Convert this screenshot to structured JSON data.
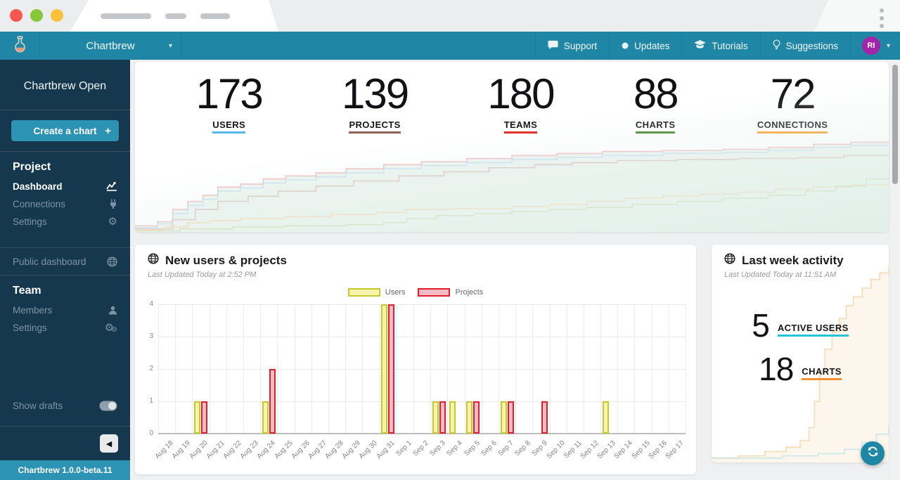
{
  "window": {
    "traffic_lights": [
      "#fa5650",
      "#86c73c",
      "#fcc03d"
    ]
  },
  "navbar": {
    "selector_label": "Chartbrew",
    "items": [
      {
        "label": "Support",
        "icon": "chat"
      },
      {
        "label": "Updates",
        "icon": "dot"
      },
      {
        "label": "Tutorials",
        "icon": "cap"
      },
      {
        "label": "Suggestions",
        "icon": "bulb"
      }
    ],
    "avatar": "RI"
  },
  "sidebar": {
    "workspace": "Chartbrew Open",
    "create_chart": "Create a chart",
    "project_heading": "Project",
    "project_items": [
      {
        "label": "Dashboard",
        "icon": "chart",
        "active": true
      },
      {
        "label": "Connections",
        "icon": "plug",
        "active": false
      },
      {
        "label": "Settings",
        "icon": "gear",
        "active": false
      }
    ],
    "public_dashboard": "Public dashboard",
    "team_heading": "Team",
    "team_items": [
      {
        "label": "Members",
        "icon": "user",
        "active": false
      },
      {
        "label": "Settings",
        "icon": "gears",
        "active": false
      }
    ],
    "show_drafts": "Show drafts",
    "version": "Chartbrew 1.0.0-beta.11"
  },
  "stats": {
    "items": [
      {
        "value": "173",
        "label": "USERS",
        "underline": "#56b9ec"
      },
      {
        "value": "139",
        "label": "PROJECTS",
        "underline": "#8f6358"
      },
      {
        "value": "180",
        "label": "TEAMS",
        "underline": "#e02b22"
      },
      {
        "value": "88",
        "label": "CHARTS",
        "underline": "#45872f"
      },
      {
        "value": "72",
        "label": "CONNECTIONS",
        "underline": "#f8a02e"
      }
    ]
  },
  "cards": {
    "new_users": {
      "title": "New users & projects",
      "updated": "Last Updated Today at 2:52 PM",
      "legend": [
        {
          "label": "Users",
          "fill": "#f6f3ae",
          "border": "#c6c92b"
        },
        {
          "label": "Projects",
          "fill": "#f3bcc4",
          "border": "#e2202d"
        }
      ]
    },
    "activity": {
      "title": "Last week activity",
      "updated": "Last Updated Today at 11:51 AM",
      "stats": [
        {
          "value": "5",
          "label": "ACTIVE USERS",
          "underline": "#27c4d8"
        },
        {
          "value": "18",
          "label": "CHARTS",
          "underline": "#f68f2e"
        }
      ]
    }
  },
  "chart_data": [
    {
      "name": "new-users-projects",
      "type": "bar",
      "title": "New users & projects",
      "categories": [
        "Aug 18",
        "Aug 19",
        "Aug 20",
        "Aug 21",
        "Aug 22",
        "Aug 23",
        "Aug 24",
        "Aug 25",
        "Aug 26",
        "Aug 27",
        "Aug 28",
        "Aug 29",
        "Aug 30",
        "Aug 31",
        "Sep 1",
        "Sep 2",
        "Sep 3",
        "Sep 4",
        "Sep 5",
        "Sep 6",
        "Sep 7",
        "Sep 8",
        "Sep 9",
        "Sep 10",
        "Sep 11",
        "Sep 12",
        "Sep 13",
        "Sep 14",
        "Sep 15",
        "Sep 16",
        "Sep 17"
      ],
      "series": [
        {
          "name": "Users",
          "fill": "#f6f3ae",
          "border": "#c6c92b",
          "values": [
            0,
            0,
            1,
            0,
            0,
            0,
            1,
            0,
            0,
            0,
            0,
            0,
            0,
            4,
            0,
            0,
            1,
            1,
            1,
            0,
            1,
            0,
            0,
            0,
            0,
            0,
            1,
            0,
            0,
            0,
            0
          ]
        },
        {
          "name": "Projects",
          "fill": "#f3bcc4",
          "border": "#e2202d",
          "values": [
            0,
            0,
            1,
            0,
            0,
            0,
            2,
            0,
            0,
            0,
            0,
            0,
            0,
            4,
            0,
            0,
            1,
            0,
            1,
            0,
            1,
            0,
            1,
            0,
            0,
            0,
            0,
            0,
            0,
            0,
            0
          ]
        }
      ],
      "ylim": [
        0,
        4
      ],
      "yticks": [
        0,
        1,
        2,
        3,
        4
      ],
      "grid": true,
      "legend_position": "top"
    },
    {
      "name": "overview-trends",
      "type": "line",
      "normalized": true,
      "area_fill": "#e4efe9",
      "series": [
        {
          "name": "Teams",
          "color": "#f2b2ba",
          "points": [
            [
              0,
              0.06
            ],
            [
              0.03,
              0.1
            ],
            [
              0.05,
              0.22
            ],
            [
              0.07,
              0.3
            ],
            [
              0.09,
              0.36
            ],
            [
              0.11,
              0.44
            ],
            [
              0.14,
              0.47
            ],
            [
              0.17,
              0.52
            ],
            [
              0.2,
              0.55
            ],
            [
              0.24,
              0.58
            ],
            [
              0.28,
              0.62
            ],
            [
              0.33,
              0.66
            ],
            [
              0.38,
              0.69
            ],
            [
              0.44,
              0.72
            ],
            [
              0.5,
              0.75
            ],
            [
              0.56,
              0.77
            ],
            [
              0.62,
              0.79
            ],
            [
              0.7,
              0.8
            ],
            [
              0.78,
              0.81
            ],
            [
              0.84,
              0.83
            ],
            [
              0.9,
              0.86
            ],
            [
              0.95,
              0.88
            ],
            [
              1,
              0.9
            ]
          ]
        },
        {
          "name": "Users",
          "color": "#c3dcf4",
          "points": [
            [
              0,
              0.04
            ],
            [
              0.03,
              0.08
            ],
            [
              0.05,
              0.18
            ],
            [
              0.07,
              0.26
            ],
            [
              0.09,
              0.32
            ],
            [
              0.11,
              0.4
            ],
            [
              0.14,
              0.43
            ],
            [
              0.17,
              0.48
            ],
            [
              0.2,
              0.51
            ],
            [
              0.24,
              0.54
            ],
            [
              0.28,
              0.58
            ],
            [
              0.33,
              0.62
            ],
            [
              0.38,
              0.65
            ],
            [
              0.44,
              0.68
            ],
            [
              0.5,
              0.71
            ],
            [
              0.56,
              0.73
            ],
            [
              0.62,
              0.75
            ],
            [
              0.7,
              0.77
            ],
            [
              0.78,
              0.78
            ],
            [
              0.84,
              0.8
            ],
            [
              0.9,
              0.83
            ],
            [
              0.95,
              0.85
            ],
            [
              1,
              0.87
            ]
          ]
        },
        {
          "name": "Projects",
          "color": "#d9bcb6",
          "points": [
            [
              0,
              0.03
            ],
            [
              0.05,
              0.12
            ],
            [
              0.08,
              0.22
            ],
            [
              0.11,
              0.3
            ],
            [
              0.15,
              0.35
            ],
            [
              0.19,
              0.4
            ],
            [
              0.24,
              0.45
            ],
            [
              0.29,
              0.5
            ],
            [
              0.35,
              0.55
            ],
            [
              0.41,
              0.59
            ],
            [
              0.47,
              0.63
            ],
            [
              0.53,
              0.66
            ],
            [
              0.58,
              0.68
            ],
            [
              0.64,
              0.7
            ],
            [
              0.72,
              0.71
            ],
            [
              0.8,
              0.72
            ],
            [
              0.88,
              0.73
            ],
            [
              0.94,
              0.75
            ],
            [
              1,
              0.76
            ]
          ]
        },
        {
          "name": "Connections",
          "color": "#f8d2a6",
          "points": [
            [
              0,
              0.02
            ],
            [
              0.04,
              0.05
            ],
            [
              0.07,
              0.09
            ],
            [
              0.1,
              0.11
            ],
            [
              0.14,
              0.13
            ],
            [
              0.2,
              0.15
            ],
            [
              0.26,
              0.17
            ],
            [
              0.32,
              0.19
            ],
            [
              0.36,
              0.22
            ],
            [
              0.42,
              0.23
            ],
            [
              0.5,
              0.25
            ],
            [
              0.55,
              0.27
            ],
            [
              0.6,
              0.3
            ],
            [
              0.65,
              0.33
            ],
            [
              0.7,
              0.35
            ],
            [
              0.75,
              0.37
            ],
            [
              0.8,
              0.39
            ],
            [
              0.85,
              0.42
            ],
            [
              0.9,
              0.44
            ],
            [
              0.95,
              0.46
            ],
            [
              1,
              0.48
            ]
          ]
        },
        {
          "name": "Charts",
          "color": "#cbd8a6",
          "points": [
            [
              0,
              0.01
            ],
            [
              0.06,
              0.03
            ],
            [
              0.13,
              0.05
            ],
            [
              0.2,
              0.06
            ],
            [
              0.28,
              0.07
            ],
            [
              0.33,
              0.09
            ],
            [
              0.36,
              0.13
            ],
            [
              0.4,
              0.16
            ],
            [
              0.45,
              0.18
            ],
            [
              0.5,
              0.2
            ],
            [
              0.55,
              0.22
            ],
            [
              0.6,
              0.24
            ],
            [
              0.66,
              0.27
            ],
            [
              0.72,
              0.3
            ],
            [
              0.78,
              0.33
            ],
            [
              0.84,
              0.36
            ],
            [
              0.89,
              0.4
            ],
            [
              0.93,
              0.45
            ],
            [
              0.97,
              0.52
            ],
            [
              1,
              0.58
            ]
          ]
        }
      ]
    },
    {
      "name": "last-week-activity-trend",
      "type": "line",
      "normalized": true,
      "area_fill": "#fbf2e6",
      "series": [
        {
          "name": "Charts",
          "color": "#f6cf9f",
          "points": [
            [
              0,
              0.02
            ],
            [
              0.15,
              0.03
            ],
            [
              0.3,
              0.05
            ],
            [
              0.42,
              0.07
            ],
            [
              0.5,
              0.1
            ],
            [
              0.55,
              0.16
            ],
            [
              0.58,
              0.28
            ],
            [
              0.61,
              0.42
            ],
            [
              0.64,
              0.52
            ],
            [
              0.68,
              0.6
            ],
            [
              0.72,
              0.66
            ],
            [
              0.76,
              0.72
            ],
            [
              0.8,
              0.76
            ],
            [
              0.85,
              0.8
            ],
            [
              0.9,
              0.84
            ],
            [
              0.95,
              0.87
            ],
            [
              1,
              0.9
            ]
          ]
        },
        {
          "name": "Active Users",
          "color": "#b8e2e4",
          "points": [
            [
              0,
              0.02
            ],
            [
              0.4,
              0.03
            ],
            [
              0.6,
              0.04
            ],
            [
              0.75,
              0.06
            ],
            [
              0.85,
              0.09
            ],
            [
              0.93,
              0.13
            ],
            [
              1,
              0.17
            ]
          ]
        }
      ]
    }
  ]
}
